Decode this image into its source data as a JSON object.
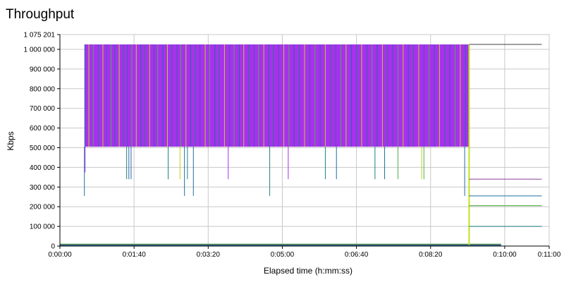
{
  "chart_data": {
    "type": "line",
    "title": "Throughput",
    "xlabel": "Elapsed time (h:mm:ss)",
    "ylabel": "Kbps",
    "xlim": [
      0,
      660
    ],
    "ylim": [
      0,
      1075201
    ],
    "x_ticks": [
      {
        "value": 0,
        "label": "0:00:00"
      },
      {
        "value": 100,
        "label": "0:01:40"
      },
      {
        "value": 200,
        "label": "0:03:20"
      },
      {
        "value": 300,
        "label": "0:05:00"
      },
      {
        "value": 400,
        "label": "0:06:40"
      },
      {
        "value": 500,
        "label": "0:08:20"
      },
      {
        "value": 600,
        "label": "0:10:00"
      },
      {
        "value": 660,
        "label": "0:11:00"
      }
    ],
    "y_ticks": [
      {
        "value": 0,
        "label": "0"
      },
      {
        "value": 100000,
        "label": "100 000"
      },
      {
        "value": 200000,
        "label": "200 000"
      },
      {
        "value": 300000,
        "label": "300 000"
      },
      {
        "value": 400000,
        "label": "400 000"
      },
      {
        "value": 500000,
        "label": "500 000"
      },
      {
        "value": 600000,
        "label": "600 000"
      },
      {
        "value": 700000,
        "label": "700 000"
      },
      {
        "value": 800000,
        "label": "800 000"
      },
      {
        "value": 900000,
        "label": "900 000"
      },
      {
        "value": 1000000,
        "label": "1 000 000"
      },
      {
        "value": 1075201,
        "label": "1 075 201"
      }
    ],
    "grid": true,
    "legend": "none",
    "active_band": {
      "x_start": 33,
      "x_end": 552,
      "y_low": 505000,
      "y_high": 1025000,
      "color": "#a930ee"
    },
    "band_spikes": [
      {
        "x": 34,
        "color": "#1a6fa0"
      },
      {
        "x": 39,
        "color": "#c0d020"
      },
      {
        "x": 45,
        "color": "#4caf50"
      },
      {
        "x": 52,
        "color": "#1e8080"
      },
      {
        "x": 58,
        "color": "#c0d020"
      },
      {
        "x": 63,
        "color": "#3a60b0"
      },
      {
        "x": 69,
        "color": "#4caf50"
      },
      {
        "x": 74,
        "color": "#1a6fa0"
      },
      {
        "x": 80,
        "color": "#c0d020"
      },
      {
        "x": 86,
        "color": "#1e8080"
      },
      {
        "x": 91,
        "color": "#3a60b0"
      },
      {
        "x": 97,
        "color": "#4caf50"
      },
      {
        "x": 103,
        "color": "#c0d020"
      },
      {
        "x": 109,
        "color": "#1a6fa0"
      },
      {
        "x": 114,
        "color": "#1e8080"
      },
      {
        "x": 121,
        "color": "#c0d020"
      },
      {
        "x": 127,
        "color": "#3a60b0"
      },
      {
        "x": 132,
        "color": "#4caf50"
      },
      {
        "x": 139,
        "color": "#1a6fa0"
      },
      {
        "x": 145,
        "color": "#c0d020"
      },
      {
        "x": 151,
        "color": "#1e8080"
      },
      {
        "x": 158,
        "color": "#3a60b0"
      },
      {
        "x": 163,
        "color": "#4caf50"
      },
      {
        "x": 170,
        "color": "#c0d020"
      },
      {
        "x": 176,
        "color": "#1a6fa0"
      },
      {
        "x": 183,
        "color": "#1e8080"
      },
      {
        "x": 189,
        "color": "#3a60b0"
      },
      {
        "x": 196,
        "color": "#c0d020"
      },
      {
        "x": 202,
        "color": "#4caf50"
      },
      {
        "x": 209,
        "color": "#1a6fa0"
      },
      {
        "x": 215,
        "color": "#1e8080"
      },
      {
        "x": 222,
        "color": "#c0d020"
      },
      {
        "x": 229,
        "color": "#3a60b0"
      },
      {
        "x": 235,
        "color": "#4caf50"
      },
      {
        "x": 242,
        "color": "#1a6fa0"
      },
      {
        "x": 248,
        "color": "#c0d020"
      },
      {
        "x": 255,
        "color": "#1e8080"
      },
      {
        "x": 262,
        "color": "#3a60b0"
      },
      {
        "x": 268,
        "color": "#4caf50"
      },
      {
        "x": 275,
        "color": "#c0d020"
      },
      {
        "x": 282,
        "color": "#1a6fa0"
      },
      {
        "x": 288,
        "color": "#1e8080"
      },
      {
        "x": 295,
        "color": "#3a60b0"
      },
      {
        "x": 302,
        "color": "#c0d020"
      },
      {
        "x": 309,
        "color": "#4caf50"
      },
      {
        "x": 316,
        "color": "#1a6fa0"
      },
      {
        "x": 323,
        "color": "#1e8080"
      },
      {
        "x": 330,
        "color": "#c0d020"
      },
      {
        "x": 337,
        "color": "#3a60b0"
      },
      {
        "x": 344,
        "color": "#4caf50"
      },
      {
        "x": 351,
        "color": "#1a6fa0"
      },
      {
        "x": 358,
        "color": "#c0d020"
      },
      {
        "x": 365,
        "color": "#1e8080"
      },
      {
        "x": 372,
        "color": "#3a60b0"
      },
      {
        "x": 379,
        "color": "#4caf50"
      },
      {
        "x": 386,
        "color": "#c0d020"
      },
      {
        "x": 393,
        "color": "#1a6fa0"
      },
      {
        "x": 400,
        "color": "#1e8080"
      },
      {
        "x": 407,
        "color": "#c0d020"
      },
      {
        "x": 414,
        "color": "#3a60b0"
      },
      {
        "x": 421,
        "color": "#4caf50"
      },
      {
        "x": 428,
        "color": "#1a6fa0"
      },
      {
        "x": 435,
        "color": "#c0d020"
      },
      {
        "x": 442,
        "color": "#1e8080"
      },
      {
        "x": 449,
        "color": "#3a60b0"
      },
      {
        "x": 456,
        "color": "#4caf50"
      },
      {
        "x": 463,
        "color": "#c0d020"
      },
      {
        "x": 470,
        "color": "#1a6fa0"
      },
      {
        "x": 477,
        "color": "#1e8080"
      },
      {
        "x": 484,
        "color": "#c0d020"
      },
      {
        "x": 491,
        "color": "#3a60b0"
      },
      {
        "x": 498,
        "color": "#4caf50"
      },
      {
        "x": 505,
        "color": "#1a6fa0"
      },
      {
        "x": 512,
        "color": "#c0d020"
      },
      {
        "x": 519,
        "color": "#1e8080"
      },
      {
        "x": 526,
        "color": "#3a60b0"
      },
      {
        "x": 533,
        "color": "#4caf50"
      },
      {
        "x": 540,
        "color": "#c0d020"
      },
      {
        "x": 547,
        "color": "#1a6fa0"
      }
    ],
    "dips": [
      {
        "x": 33,
        "y": 255000,
        "color": "#1a6fa0"
      },
      {
        "x": 34,
        "y": 375000,
        "color": "#a930ee"
      },
      {
        "x": 90,
        "y": 340000,
        "color": "#1e8080"
      },
      {
        "x": 93,
        "y": 340000,
        "color": "#1a6fa0"
      },
      {
        "x": 96,
        "y": 340000,
        "color": "#3a60b0"
      },
      {
        "x": 146,
        "y": 340000,
        "color": "#1e8080"
      },
      {
        "x": 162,
        "y": 340000,
        "color": "#c0d020"
      },
      {
        "x": 168,
        "y": 255000,
        "color": "#1a6fa0"
      },
      {
        "x": 172,
        "y": 340000,
        "color": "#1e8080"
      },
      {
        "x": 180,
        "y": 255000,
        "color": "#1a6fa0"
      },
      {
        "x": 227,
        "y": 340000,
        "color": "#a930ee"
      },
      {
        "x": 283,
        "y": 255000,
        "color": "#1e8080"
      },
      {
        "x": 308,
        "y": 340000,
        "color": "#a930ee"
      },
      {
        "x": 358,
        "y": 340000,
        "color": "#1e8080"
      },
      {
        "x": 373,
        "y": 340000,
        "color": "#1a6fa0"
      },
      {
        "x": 425,
        "y": 340000,
        "color": "#1e8080"
      },
      {
        "x": 438,
        "y": 340000,
        "color": "#1a6fa0"
      },
      {
        "x": 456,
        "y": 340000,
        "color": "#4caf50"
      },
      {
        "x": 488,
        "y": 340000,
        "color": "#c0d020"
      },
      {
        "x": 491,
        "y": 340000,
        "color": "#4caf50"
      },
      {
        "x": 546,
        "y": 255000,
        "color": "#1a6fa0"
      }
    ],
    "drop": {
      "x": 552,
      "y_high": 1025000,
      "y_low": 5000,
      "color": "#c0e020"
    },
    "trailing_lines": [
      {
        "y": 1025000,
        "x_start": 552,
        "x_end": 650,
        "color": "#404040"
      },
      {
        "y": 340000,
        "x_start": 552,
        "x_end": 650,
        "color": "#8a3a9a"
      },
      {
        "y": 255000,
        "x_start": 552,
        "x_end": 650,
        "color": "#1a6fa0"
      },
      {
        "y": 205000,
        "x_start": 552,
        "x_end": 650,
        "color": "#3aa030"
      },
      {
        "y": 100000,
        "x_start": 552,
        "x_end": 650,
        "color": "#1e8080"
      }
    ],
    "baseline_series": [
      {
        "y": 9000,
        "x_start": 0,
        "x_end": 595,
        "color": "#3aa030"
      },
      {
        "y": 5000,
        "x_start": 0,
        "x_end": 595,
        "color": "#8a3a9a"
      },
      {
        "y": 2500,
        "x_start": 0,
        "x_end": 595,
        "color": "#1a6fa0"
      }
    ],
    "colors": {
      "grid": "#c8c8c8",
      "axis": "#000000",
      "plot_border": "#808080"
    }
  }
}
